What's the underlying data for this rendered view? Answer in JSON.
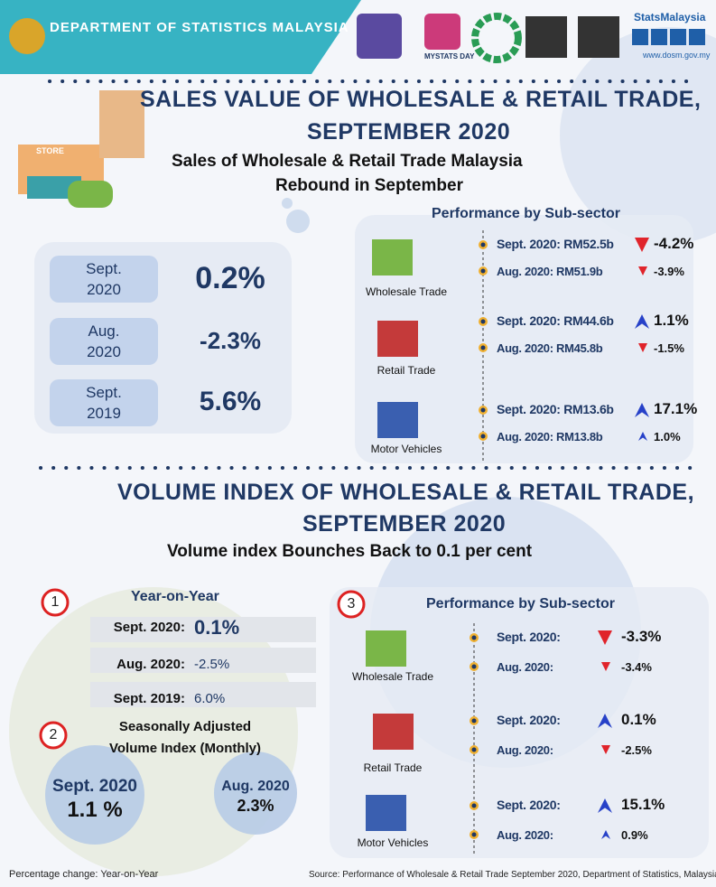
{
  "header": {
    "organization": "DEPARTMENT OF STATISTICS MALAYSIA",
    "logo_text": "MYSTATS DAY",
    "brand": "StatsMalaysia",
    "website": "www.dosm.gov.my"
  },
  "sales": {
    "title_line1": "SALES VALUE OF WHOLESALE & RETAIL TRADE,",
    "title_line2": "SEPTEMBER 2020",
    "subtitle_line1": "Sales of Wholesale & Retail Trade Malaysia",
    "subtitle_line2": "Rebound in September",
    "store_sign": "STORE",
    "summary": [
      {
        "period_line1": "Sept.",
        "period_line2": "2020",
        "value": "0.2%"
      },
      {
        "period_line1": "Aug.",
        "period_line2": "2020",
        "value": "-2.3%"
      },
      {
        "period_line1": "Sept.",
        "period_line2": "2019",
        "value": "5.6%"
      }
    ],
    "performance": {
      "title": "Performance by Sub-sector",
      "subsectors": [
        {
          "name": "Wholesale Trade",
          "rows": [
            {
              "label": "Sept. 2020: RM52.5b",
              "change": "-4.2%",
              "arrow": "down"
            },
            {
              "label": "Aug. 2020: RM51.9b",
              "change": "-3.9%",
              "arrow": "down"
            }
          ]
        },
        {
          "name": "Retail Trade",
          "rows": [
            {
              "label": "Sept. 2020: RM44.6b",
              "change": "1.1%",
              "arrow": "up"
            },
            {
              "label": "Aug. 2020: RM45.8b",
              "change": "-1.5%",
              "arrow": "down"
            }
          ]
        },
        {
          "name": "Motor Vehicles",
          "rows": [
            {
              "label": "Sept. 2020: RM13.6b",
              "change": "17.1%",
              "arrow": "up"
            },
            {
              "label": "Aug. 2020: RM13.8b",
              "change": "1.0%",
              "arrow": "up"
            }
          ]
        }
      ]
    }
  },
  "volume": {
    "title_line1": "VOLUME INDEX OF WHOLESALE & RETAIL TRADE,",
    "title_line2": "SEPTEMBER 2020",
    "subtitle": "Volume index Bounches Back to 0.1 per cent",
    "year_on_year": {
      "number": "1",
      "heading": "Year-on-Year",
      "rows": [
        {
          "label": "Sept. 2020:",
          "value": "0.1%"
        },
        {
          "label": "Aug. 2020:",
          "value": "-2.5%"
        },
        {
          "label": "Sept. 2019:",
          "value": "6.0%"
        }
      ]
    },
    "seasonally_adjusted": {
      "number": "2",
      "heading_line1": "Seasonally Adjusted",
      "heading_line2": "Volume Index (Monthly)",
      "items": [
        {
          "period": "Sept. 2020",
          "value": "1.1 %"
        },
        {
          "period": "Aug. 2020",
          "value": "2.3%"
        }
      ]
    },
    "performance": {
      "number": "3",
      "title": "Performance by Sub-sector",
      "subsectors": [
        {
          "name": "Wholesale Trade",
          "rows": [
            {
              "label": "Sept. 2020:",
              "change": "-3.3%",
              "arrow": "down"
            },
            {
              "label": "Aug. 2020:",
              "change": "-3.4%",
              "arrow": "down"
            }
          ]
        },
        {
          "name": "Retail Trade",
          "rows": [
            {
              "label": "Sept. 2020:",
              "change": "0.1%",
              "arrow": "up"
            },
            {
              "label": "Aug. 2020:",
              "change": "-2.5%",
              "arrow": "down"
            }
          ]
        },
        {
          "name": "Motor Vehicles",
          "rows": [
            {
              "label": "Sept. 2020:",
              "change": "15.1%",
              "arrow": "up"
            },
            {
              "label": "Aug. 2020:",
              "change": "0.9%",
              "arrow": "up"
            }
          ]
        }
      ]
    }
  },
  "footer": {
    "note": "Percentage change: Year-on-Year",
    "source": "Source: Performance of Wholesale & Retail Trade September 2020, Department of Statistics, Malaysia"
  }
}
